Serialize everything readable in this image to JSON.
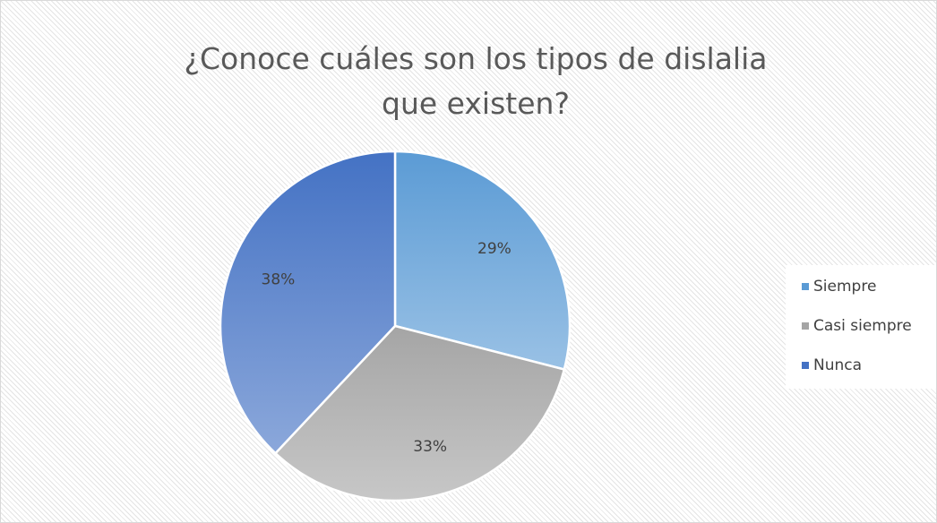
{
  "chart_data": {
    "type": "pie",
    "title": "¿Conoce cuáles son los tipos de dislalia que existen?",
    "categories": [
      "Siempre",
      "Casi siempre",
      "Nunca"
    ],
    "values": [
      29,
      33,
      38
    ],
    "value_labels": [
      "29%",
      "33%",
      "38%"
    ],
    "colors": [
      "#5b9bd5",
      "#a5a5a5",
      "#4472c4"
    ],
    "legend": "right"
  }
}
